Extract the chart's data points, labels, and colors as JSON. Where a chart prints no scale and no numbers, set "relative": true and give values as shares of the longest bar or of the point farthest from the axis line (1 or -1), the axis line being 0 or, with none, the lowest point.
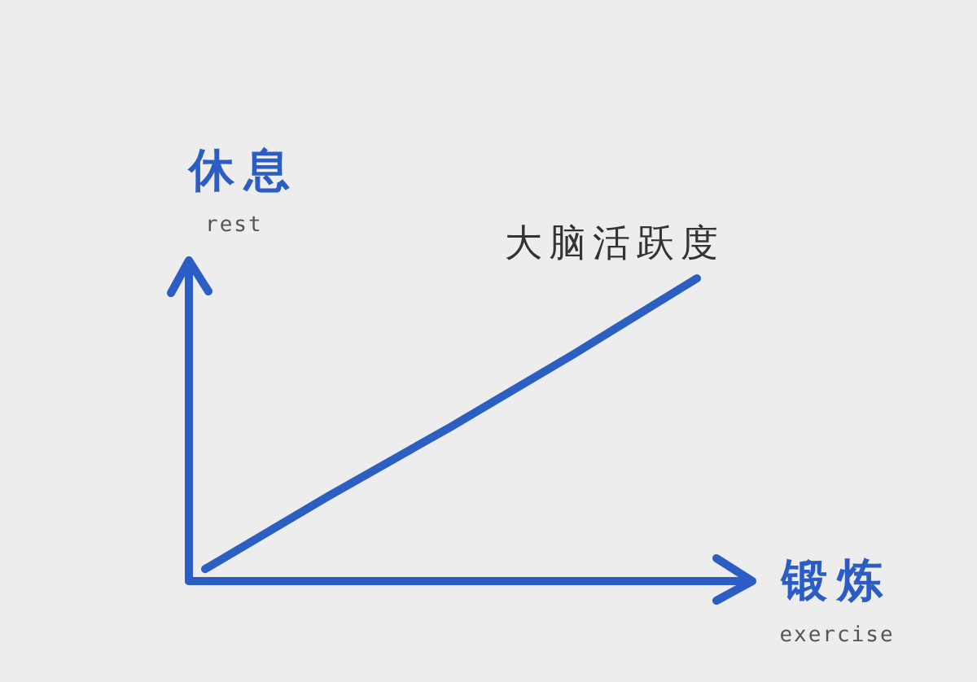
{
  "chart_data": {
    "type": "line",
    "relative": true,
    "categories": [
      null,
      null,
      null,
      null,
      null
    ],
    "series": [
      {
        "name": "大脑活跃度",
        "color": "#2b5fc2",
        "values": [
          0.04,
          0.28,
          0.51,
          0.75,
          1
        ]
      }
    ],
    "xlabel": "锻炼\nexercise",
    "ylabel": "休息\nrest"
  }
}
